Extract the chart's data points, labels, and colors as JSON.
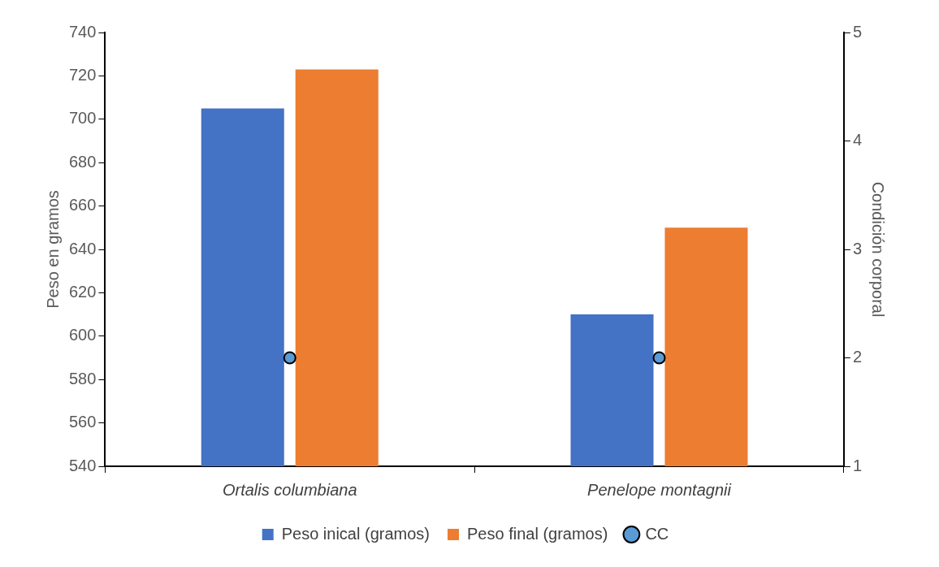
{
  "chart_data": {
    "type": "bar",
    "categories": [
      "Ortalis columbiana",
      "Penelope montagnii"
    ],
    "ylabel": "Peso en gramos",
    "y2label": "Condición corporal",
    "series": [
      {
        "name": "Peso inical (gramos)",
        "color": "#4472c4",
        "values": [
          705,
          610
        ]
      },
      {
        "name": "Peso final (gramos)",
        "color": "#ed7d31",
        "values": [
          723,
          650
        ]
      },
      {
        "name": "CC",
        "type": "scatter",
        "axis": "y2",
        "color": "#5b9bd5",
        "x": [
          "Ortalis columbiana",
          "Penelope montagnii"
        ],
        "values": [
          2,
          2
        ],
        "marker": "circle"
      }
    ],
    "ylim": [
      540,
      740
    ],
    "yticks": [
      540,
      560,
      580,
      600,
      620,
      640,
      660,
      680,
      700,
      720,
      740
    ],
    "y2lim": [
      1,
      5
    ],
    "y2ticks": [
      1,
      2,
      3,
      4,
      5
    ],
    "grid": false,
    "legend": "bottom"
  }
}
